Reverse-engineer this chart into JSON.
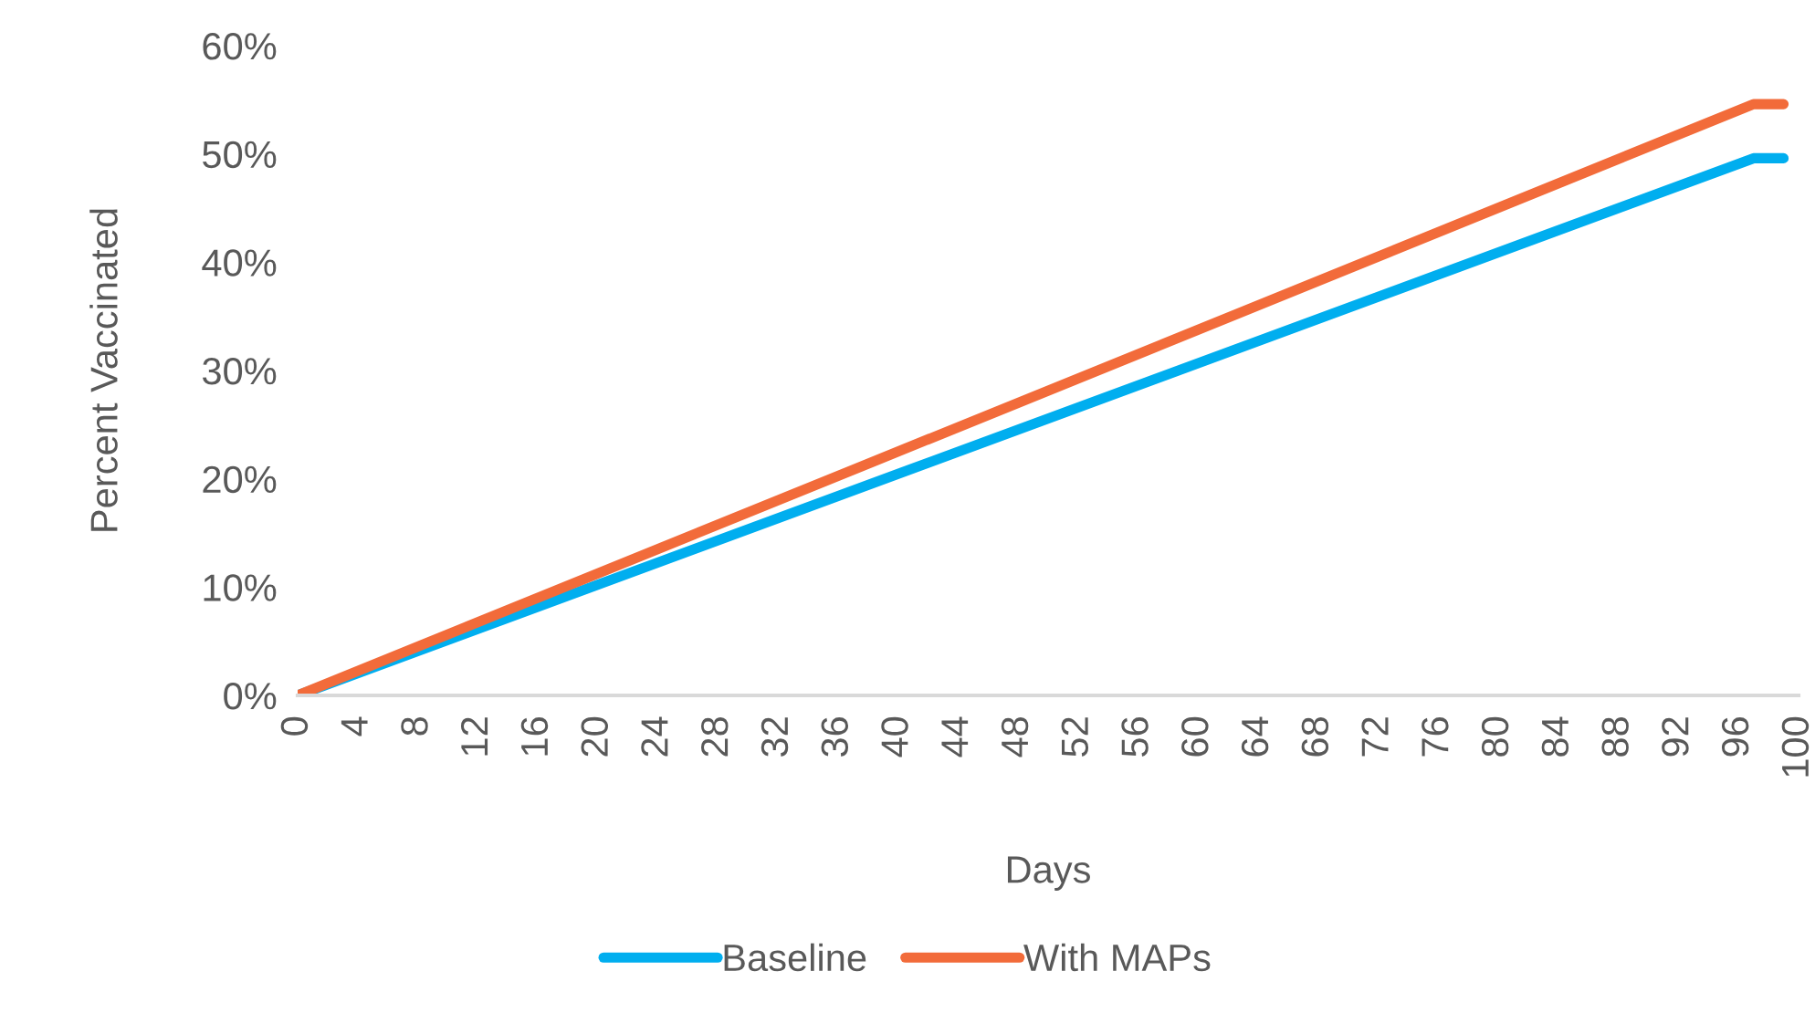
{
  "chart_data": {
    "type": "line",
    "xlabel": "Days",
    "ylabel": "Percent Vaccinated",
    "series": [
      {
        "name": "Baseline",
        "color": "#00aeef",
        "x": [
          0,
          97,
          99
        ],
        "values": [
          0,
          49.6,
          49.6
        ]
      },
      {
        "name": "With MAPs",
        "color": "#f26b3a",
        "x": [
          0,
          97,
          99
        ],
        "values": [
          0,
          54.6,
          54.6
        ]
      }
    ],
    "xlim": [
      0,
      100
    ],
    "xticks": [
      0,
      4,
      8,
      12,
      16,
      20,
      24,
      28,
      32,
      36,
      40,
      44,
      48,
      52,
      56,
      60,
      64,
      68,
      72,
      76,
      80,
      84,
      88,
      92,
      96,
      100
    ],
    "ylim": [
      0,
      60
    ],
    "yticks": [
      {
        "value": 0,
        "label": "0%"
      },
      {
        "value": 10,
        "label": "10%"
      },
      {
        "value": 20,
        "label": "20%"
      },
      {
        "value": 30,
        "label": "30%"
      },
      {
        "value": 40,
        "label": "40%"
      },
      {
        "value": 50,
        "label": "50%"
      },
      {
        "value": 60,
        "label": "60%"
      }
    ],
    "grid": false,
    "legend": "bottom",
    "marker": "none",
    "line_style": "solid"
  }
}
